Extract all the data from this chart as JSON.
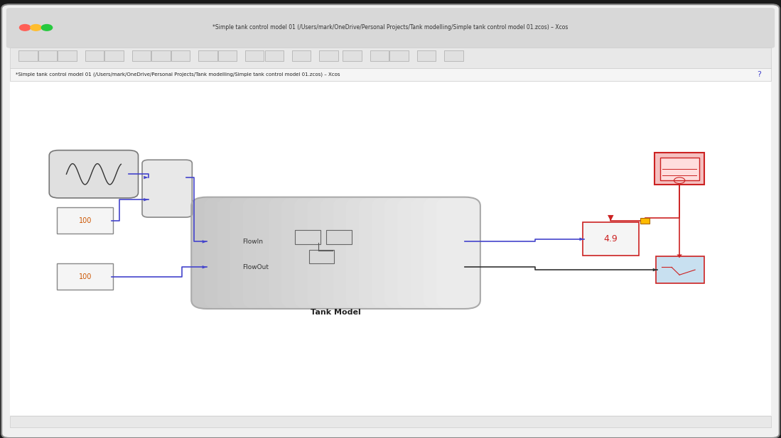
{
  "title_bar": "*Simple tank control model 01 (/Users/mark/OneDrive/Personal Projects/Tank modelling/Simple tank control model 01.zcos) – Xcos",
  "tab_text": "*Simple tank control model 01 (/Users/mark/OneDrive/Personal Projects/Tank modelling/Simple tank control model 01.zcos) – Xcos",
  "tab_question": "?",
  "tank_model_label": "Tank Model",
  "flowin_label": "FlowIn",
  "flowout_label": "FlowOut",
  "value_49": "4.9",
  "const100_1_text": "100",
  "const100_2_text": "100",
  "bg_outer": "#1a1a1a",
  "bg_window": "#f0f0f0",
  "bg_canvas": "#ffffff",
  "bg_titlebar": "#d8d8d8",
  "bg_toolbar": "#e8e8e8",
  "bg_tab": "#f5f5f5",
  "color_blue_line": "#4444cc",
  "color_red": "#cc2222",
  "color_orange": "#cc8800"
}
